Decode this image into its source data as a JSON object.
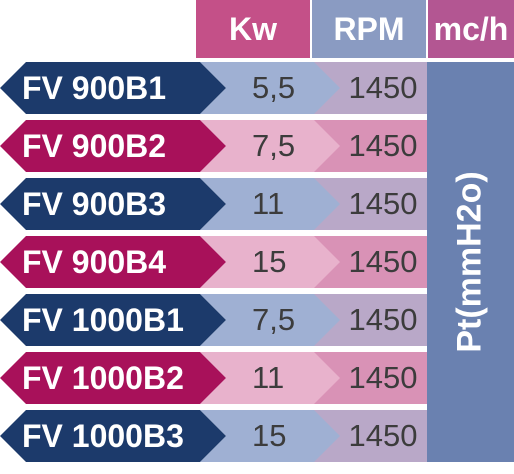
{
  "header": {
    "kw": "Kw",
    "rpm": "RPM",
    "flow": "mc/h"
  },
  "side_label": "Pt(mmH2o)",
  "rows": [
    {
      "model": "FV 900B1",
      "kw": "5,5",
      "rpm": "1450"
    },
    {
      "model": "FV 900B2",
      "kw": "7,5",
      "rpm": "1450"
    },
    {
      "model": "FV 900B3",
      "kw": "11",
      "rpm": "1450"
    },
    {
      "model": "FV 900B4",
      "kw": "15",
      "rpm": "1450"
    },
    {
      "model": "FV 1000B1",
      "kw": "7,5",
      "rpm": "1450"
    },
    {
      "model": "FV 1000B2",
      "kw": "11",
      "rpm": "1450"
    },
    {
      "model": "FV 1000B3",
      "kw": "15",
      "rpm": "1450"
    }
  ],
  "colors": {
    "navy": "#1c3a6b",
    "magenta": "#a8115a",
    "kw_header": "#c45088",
    "rpm_header": "#8a9bc2",
    "flow_header": "#b35692",
    "kw_blue": "#9fb0d3",
    "kw_pink": "#e8b2cc",
    "rpm_blue": "#b9a8c8",
    "rpm_pink": "#d992b6",
    "pt_col": "#6a81b0"
  }
}
